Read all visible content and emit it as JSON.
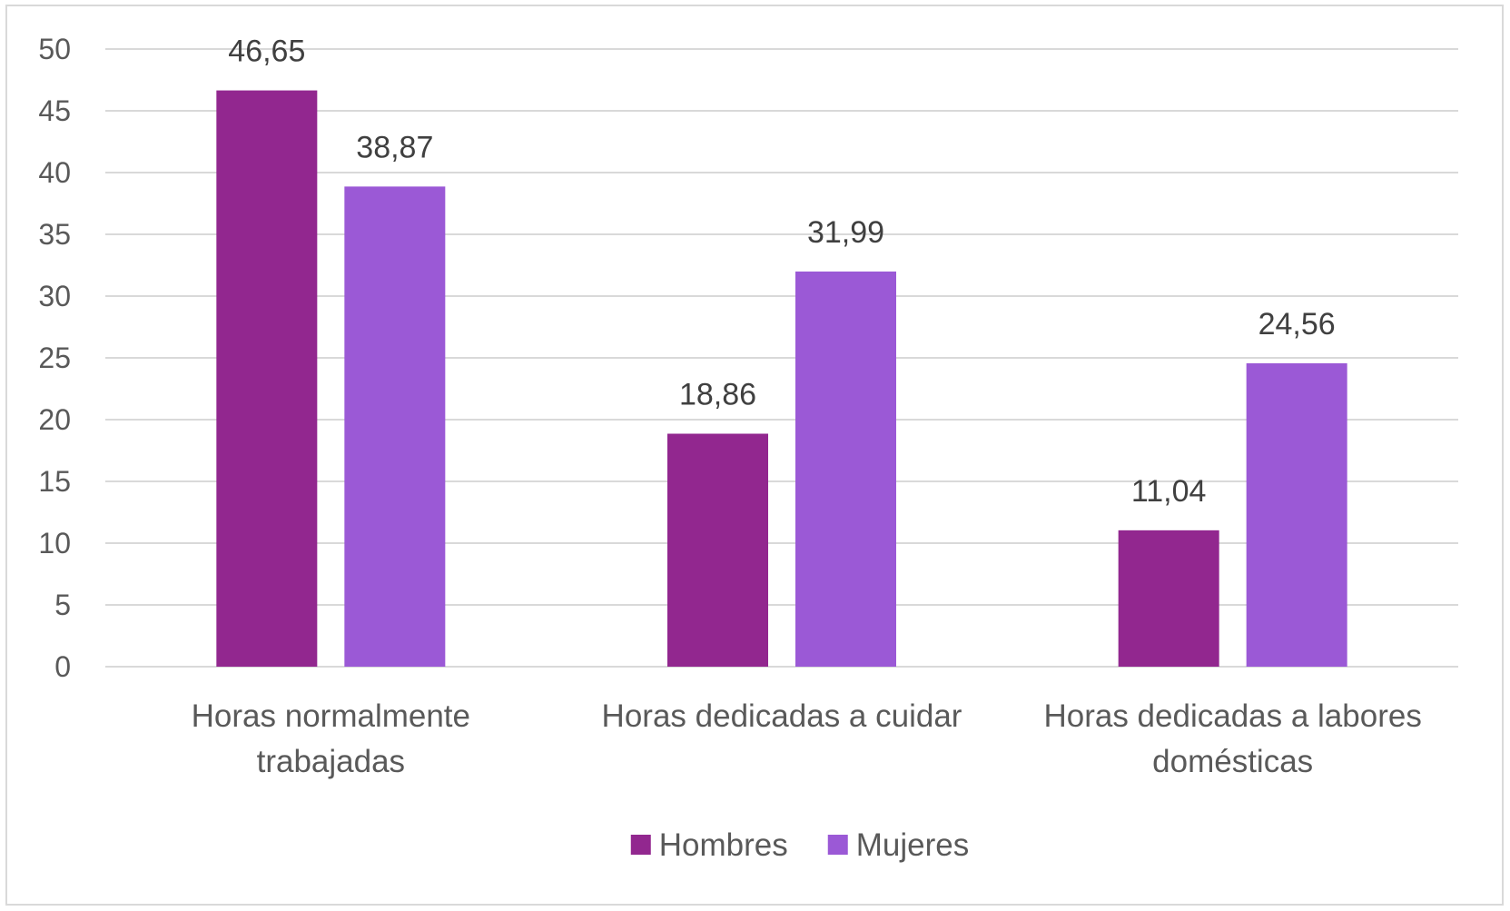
{
  "chart_data": {
    "type": "bar",
    "categories": [
      [
        "Horas normalmente",
        "trabajadas"
      ],
      [
        "Horas dedicadas a cuidar"
      ],
      [
        "Horas dedicadas a labores",
        "domésticas"
      ]
    ],
    "series": [
      {
        "name": "Hombres",
        "color": "#92278f",
        "values": [
          46.65,
          18.86,
          11.04
        ],
        "labels": [
          "46,65",
          "18,86",
          "11,04"
        ]
      },
      {
        "name": "Mujeres",
        "color": "#9b59d6",
        "values": [
          38.87,
          31.99,
          24.56
        ],
        "labels": [
          "38,87",
          "31,99",
          "24,56"
        ]
      }
    ],
    "ylim": [
      0,
      50
    ],
    "yticks": [
      0,
      5,
      10,
      15,
      20,
      25,
      30,
      35,
      40,
      45,
      50
    ],
    "grid": true,
    "grid_color": "#d9d9d9",
    "legend_position": "bottom",
    "title": "",
    "xlabel": "",
    "ylabel": ""
  }
}
